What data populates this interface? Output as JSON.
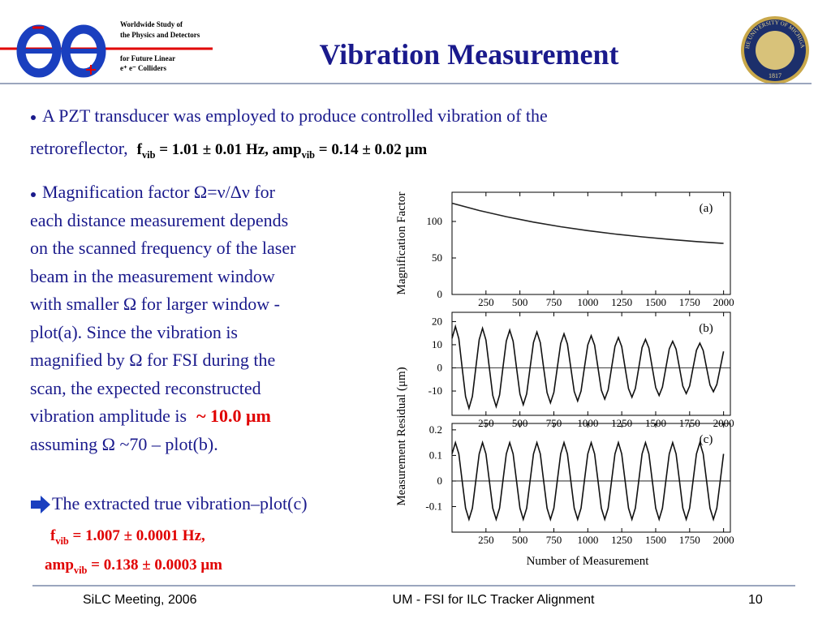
{
  "header": {
    "logo_text": [
      "Worldwide Study of",
      "the Physics and Detectors",
      "for Future Linear",
      "e⁺ e⁻ Colliders"
    ],
    "title": "Vibration Measurement",
    "seal_text": [
      "THE UNIVERSITY OF MICHIGAN",
      "1817"
    ]
  },
  "body": {
    "bullet1": {
      "line1": "A PZT transducer was employed to produce controlled vibration of  the",
      "line2": "retroreflector,",
      "formula": [
        "f",
        "vib",
        " = 1.01 ± 0.01 Hz, amp",
        "vib",
        " = 0.14 ± 0.02 μm"
      ]
    },
    "bullet2": {
      "lines": [
        "Magnification factor Ω=ν/Δν for",
        "each  distance measurement depends",
        "on the scanned frequency of the laser",
        "beam in the measurement window",
        "with smaller Ω for larger window -",
        "plot(a). Since the vibration is",
        "magnified by Ω for FSI during the",
        "scan, the expected reconstructed",
        "vibration amplitude is",
        "assuming Ω ~70 – plot(b)."
      ],
      "highlight": "~ 10.0 μm"
    },
    "bullet3": {
      "text": "The extracted true vibration–plot(c)",
      "result1": [
        "f",
        "vib",
        " = 1.007 ± 0.0001 Hz,"
      ],
      "result2": [
        "amp",
        "vib",
        " = 0.138 ± 0.0003 μm"
      ]
    }
  },
  "figure": {
    "y_label_residual": "Measurement Residual (μm)",
    "x_label": "Number of Measurement",
    "panels": [
      {
        "type": "line",
        "label": "(a)",
        "y_label": "Magnification Factor",
        "color": "#222222",
        "x": [
          0,
          200,
          400,
          600,
          800,
          1000,
          1200,
          1400,
          1600,
          1800,
          2000
        ],
        "values": [
          125,
          115.0,
          106.5,
          99.1,
          92.8,
          87.4,
          82.8,
          78.9,
          75.4,
          72.5,
          70.0
        ],
        "xlim": [
          0,
          2050
        ],
        "xticks": [
          250,
          500,
          750,
          1000,
          1250,
          1500,
          1750,
          2000
        ],
        "ylim": [
          0,
          140
        ],
        "yticks": [
          0,
          50,
          100
        ],
        "zero_line": false
      },
      {
        "type": "line",
        "label": "(b)",
        "color": "#111111",
        "x": [
          0,
          25,
          50,
          75,
          100,
          125,
          150,
          175,
          200,
          225,
          250,
          275,
          300,
          325,
          350,
          375,
          400,
          425,
          450,
          475,
          500,
          525,
          550,
          575,
          600,
          625,
          650,
          675,
          700,
          725,
          750,
          775,
          800,
          825,
          850,
          875,
          900,
          925,
          950,
          975,
          1000,
          1025,
          1050,
          1075,
          1100,
          1125,
          1150,
          1175,
          1200,
          1225,
          1250,
          1275,
          1300,
          1325,
          1350,
          1375,
          1400,
          1425,
          1450,
          1475,
          1500,
          1525,
          1550,
          1575,
          1600,
          1625,
          1650,
          1675,
          1700,
          1725,
          1750,
          1775,
          1800,
          1825,
          1850,
          1875,
          1900,
          1925,
          1950,
          1975,
          2000
        ],
        "values": [
          12.7,
          17.9,
          12.6,
          0,
          -12.4,
          -17.5,
          -12.3,
          0,
          12.2,
          17.1,
          12.0,
          0,
          -11.9,
          -16.7,
          -11.7,
          0,
          11.6,
          16.3,
          11.5,
          0,
          -11.3,
          -15.9,
          -11.2,
          0,
          11.0,
          15.5,
          10.9,
          0,
          -10.7,
          -15.1,
          -10.6,
          0,
          10.5,
          14.7,
          10.3,
          0,
          -10.2,
          -14.3,
          -10.0,
          0,
          9.9,
          13.9,
          9.8,
          0,
          -9.6,
          -13.5,
          -9.5,
          0,
          9.3,
          13.1,
          9.2,
          0,
          -9.0,
          -12.7,
          -8.9,
          0,
          8.8,
          12.3,
          8.6,
          0,
          -8.5,
          -11.9,
          -8.3,
          0,
          8.2,
          11.5,
          8.1,
          0,
          -7.9,
          -11.1,
          -7.8,
          0,
          7.6,
          10.7,
          7.5,
          0,
          -7.4,
          -10.3,
          -7.2,
          0,
          7.1
        ],
        "xlim": [
          0,
          2050
        ],
        "xticks": [
          250,
          500,
          750,
          1000,
          1250,
          1500,
          1750,
          2000
        ],
        "ylim": [
          -20.5,
          24
        ],
        "yticks": [
          -10,
          0,
          10,
          20
        ],
        "zero_line": true
      },
      {
        "type": "line",
        "label": "(c)",
        "color": "#111111",
        "x": [
          0,
          25,
          50,
          75,
          100,
          125,
          150,
          175,
          200,
          225,
          250,
          275,
          300,
          325,
          350,
          375,
          400,
          425,
          450,
          475,
          500,
          525,
          550,
          575,
          600,
          625,
          650,
          675,
          700,
          725,
          750,
          775,
          800,
          825,
          850,
          875,
          900,
          925,
          950,
          975,
          1000,
          1025,
          1050,
          1075,
          1100,
          1125,
          1150,
          1175,
          1200,
          1225,
          1250,
          1275,
          1300,
          1325,
          1350,
          1375,
          1400,
          1425,
          1450,
          1475,
          1500,
          1525,
          1550,
          1575,
          1600,
          1625,
          1650,
          1675,
          1700,
          1725,
          1750,
          1775,
          1800,
          1825,
          1850,
          1875,
          1900,
          1925,
          1950,
          1975,
          2000
        ],
        "values": [
          0.106,
          0.15,
          0.106,
          0,
          -0.106,
          -0.15,
          -0.106,
          0,
          0.106,
          0.15,
          0.106,
          0,
          -0.106,
          -0.15,
          -0.106,
          0,
          0.106,
          0.15,
          0.106,
          0,
          -0.106,
          -0.15,
          -0.106,
          0,
          0.106,
          0.15,
          0.106,
          0,
          -0.106,
          -0.15,
          -0.106,
          0,
          0.106,
          0.15,
          0.106,
          0,
          -0.106,
          -0.15,
          -0.106,
          0,
          0.106,
          0.15,
          0.106,
          0,
          -0.106,
          -0.15,
          -0.106,
          0,
          0.106,
          0.15,
          0.106,
          0,
          -0.106,
          -0.15,
          -0.106,
          0,
          0.106,
          0.15,
          0.106,
          0,
          -0.106,
          -0.15,
          -0.106,
          0,
          0.106,
          0.15,
          0.106,
          0,
          -0.106,
          -0.15,
          -0.106,
          0,
          0.106,
          0.15,
          0.106,
          0,
          -0.106,
          -0.15,
          -0.106,
          0,
          0.106
        ],
        "xlim": [
          0,
          2050
        ],
        "xticks": [
          250,
          500,
          750,
          1000,
          1250,
          1500,
          1750,
          2000
        ],
        "ylim": [
          -0.2,
          0.225
        ],
        "yticks": [
          -0.1,
          0,
          0.1,
          0.2
        ],
        "zero_line": true
      }
    ]
  },
  "footer": {
    "left": "SiLC Meeting, 2006",
    "center": "UM - FSI for ILC Tracker Alignment",
    "page": "10"
  }
}
